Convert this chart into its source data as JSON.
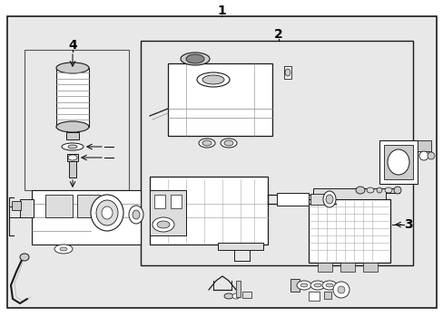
{
  "bg_outer": "#e8e8e8",
  "bg_inner": "#e8e8e8",
  "bg_white": "#ffffff",
  "lc": "#1a1a1a",
  "lc2": "#444444",
  "part_fill": "#ffffff",
  "part_fill2": "#dddddd",
  "part_fill3": "#cccccc",
  "label1": "1",
  "label2": "2",
  "label3": "3",
  "label4": "4",
  "fs": 9
}
